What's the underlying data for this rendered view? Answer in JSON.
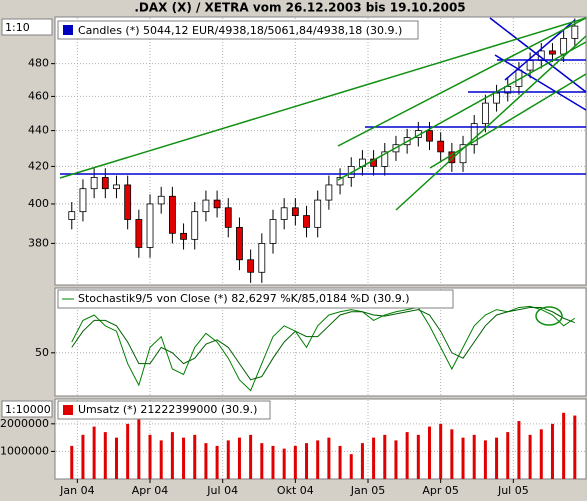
{
  "title": ".DAX (X) / XETRA vom 26.12.2003 bis 19.10.2005",
  "chart_data": [
    {
      "type": "candlestick",
      "legend": "Candles (*) 5044,12 EUR/4938,18/5061,84/4938,18 (30.9.)",
      "scale_label": "1:10",
      "log_scale": true,
      "up_color": "#ffffff",
      "down_color": "#e00000",
      "x": [
        0,
        2,
        4,
        6,
        8,
        10,
        12,
        14,
        16,
        18,
        20,
        22,
        24,
        26,
        28,
        30,
        32,
        34,
        36,
        38,
        40,
        42,
        44,
        46,
        48,
        50,
        52,
        54,
        56,
        58,
        60,
        62,
        64,
        66,
        68,
        70,
        72,
        74,
        76,
        78,
        80,
        82,
        84,
        86,
        88,
        90
      ],
      "open": [
        392,
        396,
        408,
        414,
        408,
        410,
        392,
        378,
        400,
        404,
        385,
        382,
        396,
        402,
        398,
        388,
        372,
        366,
        380,
        392,
        398,
        394,
        388,
        402,
        410,
        414,
        420,
        424,
        420,
        428,
        432,
        436,
        440,
        434,
        428,
        422,
        432,
        444,
        456,
        462,
        466,
        476,
        482,
        488,
        486,
        496
      ],
      "high": [
        401,
        413,
        419,
        419,
        415,
        415,
        397,
        405,
        409,
        409,
        390,
        401,
        407,
        407,
        403,
        393,
        377,
        385,
        397,
        403,
        403,
        399,
        407,
        415,
        419,
        425,
        429,
        429,
        433,
        437,
        441,
        445,
        445,
        439,
        433,
        437,
        449,
        461,
        467,
        471,
        481,
        487,
        493,
        493,
        501,
        509
      ],
      "low": [
        387,
        391,
        403,
        403,
        403,
        387,
        373,
        373,
        395,
        380,
        377,
        377,
        391,
        393,
        383,
        367,
        361,
        361,
        375,
        387,
        389,
        383,
        383,
        397,
        405,
        409,
        415,
        415,
        415,
        423,
        427,
        431,
        429,
        423,
        417,
        417,
        427,
        439,
        451,
        457,
        461,
        471,
        477,
        481,
        481,
        491
      ],
      "close": [
        396,
        408,
        414,
        408,
        410,
        392,
        378,
        400,
        404,
        385,
        382,
        396,
        402,
        398,
        388,
        372,
        366,
        380,
        392,
        398,
        394,
        388,
        402,
        410,
        414,
        420,
        424,
        420,
        428,
        432,
        436,
        440,
        434,
        428,
        422,
        432,
        444,
        456,
        462,
        466,
        476,
        482,
        488,
        486,
        496,
        504
      ],
      "xlim": [
        -3,
        92
      ],
      "ylim": [
        360,
        510
      ],
      "yticks": [
        380,
        400,
        420,
        440,
        460,
        480
      ]
    },
    {
      "type": "line",
      "legend": "Stochastik9/5 von Close (*) 82,6297 %K/85,0184 %D (30.9.)",
      "x": [
        0,
        2,
        4,
        6,
        8,
        10,
        12,
        14,
        16,
        18,
        20,
        22,
        24,
        26,
        28,
        30,
        32,
        34,
        36,
        38,
        40,
        42,
        44,
        46,
        48,
        50,
        52,
        54,
        56,
        58,
        60,
        62,
        64,
        66,
        68,
        70,
        72,
        74,
        76,
        78,
        80,
        82,
        84,
        86,
        88,
        90
      ],
      "series": [
        {
          "color": "#008000",
          "values": [
            60,
            80,
            85,
            75,
            70,
            40,
            20,
            55,
            65,
            35,
            30,
            55,
            68,
            60,
            45,
            25,
            15,
            40,
            65,
            75,
            70,
            55,
            75,
            85,
            88,
            90,
            88,
            80,
            85,
            88,
            90,
            92,
            75,
            55,
            35,
            55,
            75,
            85,
            90,
            88,
            92,
            93,
            90,
            85,
            75,
            82
          ]
        },
        {
          "color": "#006000",
          "values": [
            55,
            70,
            80,
            80,
            75,
            60,
            40,
            40,
            55,
            50,
            40,
            45,
            58,
            62,
            55,
            40,
            25,
            28,
            45,
            60,
            70,
            65,
            65,
            75,
            85,
            88,
            88,
            85,
            84,
            86,
            88,
            90,
            85,
            70,
            50,
            45,
            60,
            75,
            85,
            88,
            90,
            92,
            92,
            88,
            82,
            78
          ]
        }
      ],
      "xlim": [
        -3,
        92
      ],
      "ylim": [
        10,
        110
      ],
      "yticks": [
        50
      ]
    },
    {
      "type": "bar",
      "legend": "Umsatz (*) 21222399000 (30.9.)",
      "scale_label": "1:10000",
      "color": "#e00000",
      "x": [
        0,
        2,
        4,
        6,
        8,
        10,
        12,
        14,
        16,
        18,
        20,
        22,
        24,
        26,
        28,
        30,
        32,
        34,
        36,
        38,
        40,
        42,
        44,
        46,
        48,
        50,
        52,
        54,
        56,
        58,
        60,
        62,
        64,
        66,
        68,
        70,
        72,
        74,
        76,
        78,
        80,
        82,
        84,
        86,
        88,
        90
      ],
      "values": [
        1200000,
        1600000,
        1900000,
        1700000,
        1500000,
        2000000,
        2200000,
        1600000,
        1400000,
        1700000,
        1500000,
        1600000,
        1300000,
        1200000,
        1400000,
        1500000,
        1600000,
        1300000,
        1200000,
        1100000,
        1200000,
        1300000,
        1400000,
        1500000,
        1200000,
        900000,
        1300000,
        1500000,
        1600000,
        1400000,
        1700000,
        1600000,
        1900000,
        2000000,
        1800000,
        1500000,
        1600000,
        1400000,
        1500000,
        1700000,
        2100000,
        1600000,
        1800000,
        2000000,
        2400000,
        2300000
      ],
      "xlim": [
        -3,
        92
      ],
      "ylim": [
        0,
        2900000
      ],
      "yticks": [
        1000000,
        2000000
      ],
      "xticks": [
        {
          "value": 1,
          "label": "Jan 04"
        },
        {
          "value": 14,
          "label": "Apr 04"
        },
        {
          "value": 27,
          "label": "Jul 04"
        },
        {
          "value": 40,
          "label": "Okt 04"
        },
        {
          "value": 53,
          "label": "Jan 05"
        },
        {
          "value": 66,
          "label": "Apr 05"
        },
        {
          "value": 79,
          "label": "Jul 05"
        }
      ]
    }
  ]
}
